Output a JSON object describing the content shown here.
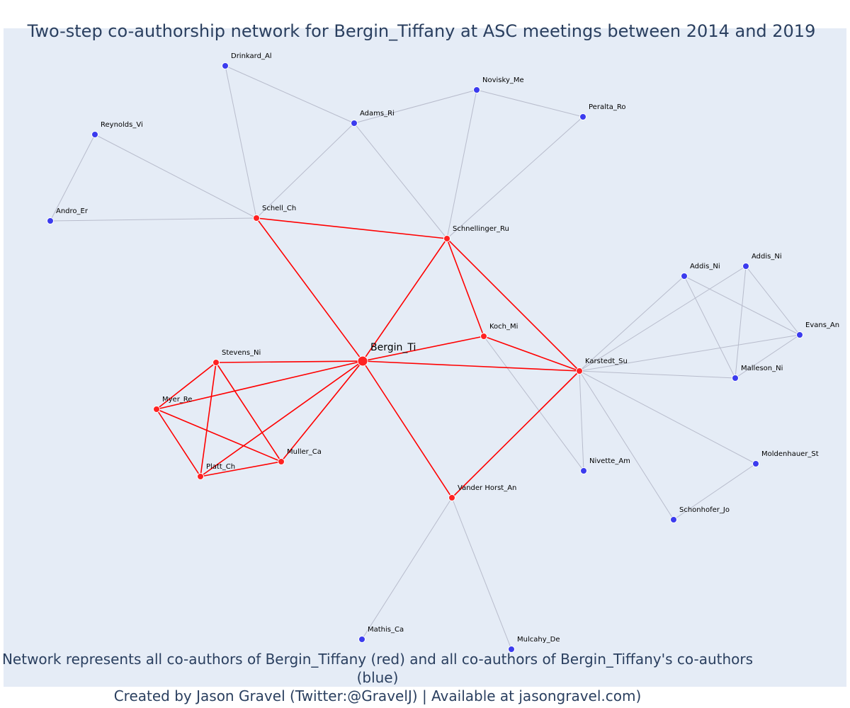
{
  "title": "Two-step co-authorship network for Bergin_Tiffany at ASC meetings between 2014 and 2019",
  "footnote": {
    "line1": "Network represents all co-authors of Bergin_Tiffany (red) and all co-authors of Bergin_Tiffany's co-authors (blue)",
    "line2": "Created by Jason Gravel (Twitter:@GravelJ) | Available at jasongravel.com)"
  },
  "colors": {
    "background": "#e5ecf6",
    "focal_edge": "#ff0000",
    "other_edge": "#b8bccc",
    "red_node": "#ff2222",
    "blue_node": "#3b3bee",
    "title_text": "#2a3f5f"
  },
  "network": {
    "focal": "Bergin_Ti",
    "nodes": [
      {
        "id": "bergin",
        "label": "Bergin_Ti",
        "group": "focal"
      },
      {
        "id": "schell",
        "label": "Schell_Ch",
        "group": "red"
      },
      {
        "id": "schnellinger",
        "label": "Schnellinger_Ru",
        "group": "red"
      },
      {
        "id": "koch",
        "label": "Koch_Mi",
        "group": "red"
      },
      {
        "id": "karstedt",
        "label": "Karstedt_Su",
        "group": "red"
      },
      {
        "id": "stevens",
        "label": "Stevens_Ni",
        "group": "red"
      },
      {
        "id": "myer",
        "label": "Myer_Re",
        "group": "red"
      },
      {
        "id": "muller",
        "label": "Muller_Ca",
        "group": "red"
      },
      {
        "id": "platt",
        "label": "Platt_Ch",
        "group": "red"
      },
      {
        "id": "vanderhorst",
        "label": "Vander Horst_An",
        "group": "red"
      },
      {
        "id": "drinkard",
        "label": "Drinkard_Al",
        "group": "blue"
      },
      {
        "id": "novisky",
        "label": "Novisky_Me",
        "group": "blue"
      },
      {
        "id": "adams",
        "label": "Adams_Ri",
        "group": "blue"
      },
      {
        "id": "peralta",
        "label": "Peralta_Ro",
        "group": "blue"
      },
      {
        "id": "reynolds",
        "label": "Reynolds_Vi",
        "group": "blue"
      },
      {
        "id": "andro",
        "label": "Andro_Er",
        "group": "blue"
      },
      {
        "id": "addis1",
        "label": "Addis_Ni",
        "group": "blue"
      },
      {
        "id": "addis2",
        "label": "Addis_Ni",
        "group": "blue"
      },
      {
        "id": "evans",
        "label": "Evans_An",
        "group": "blue"
      },
      {
        "id": "malleson",
        "label": "Malleson_Ni",
        "group": "blue"
      },
      {
        "id": "nivette",
        "label": "Nivette_Am",
        "group": "blue"
      },
      {
        "id": "moldenhauer",
        "label": "Moldenhauer_St",
        "group": "blue"
      },
      {
        "id": "schonhofer",
        "label": "Schonhofer_Jo",
        "group": "blue"
      },
      {
        "id": "mathis",
        "label": "Mathis_Ca",
        "group": "blue"
      },
      {
        "id": "mulcahy",
        "label": "Mulcahy_De",
        "group": "blue"
      }
    ],
    "edges": [
      [
        "bergin",
        "schell"
      ],
      [
        "bergin",
        "schnellinger"
      ],
      [
        "bergin",
        "koch"
      ],
      [
        "bergin",
        "karstedt"
      ],
      [
        "bergin",
        "stevens"
      ],
      [
        "bergin",
        "myer"
      ],
      [
        "bergin",
        "muller"
      ],
      [
        "bergin",
        "platt"
      ],
      [
        "bergin",
        "vanderhorst"
      ],
      [
        "schell",
        "schnellinger"
      ],
      [
        "schnellinger",
        "koch"
      ],
      [
        "schnellinger",
        "karstedt"
      ],
      [
        "koch",
        "karstedt"
      ],
      [
        "vanderhorst",
        "karstedt"
      ],
      [
        "stevens",
        "myer"
      ],
      [
        "stevens",
        "muller"
      ],
      [
        "stevens",
        "platt"
      ],
      [
        "myer",
        "muller"
      ],
      [
        "myer",
        "platt"
      ],
      [
        "muller",
        "platt"
      ],
      [
        "schell",
        "drinkard"
      ],
      [
        "schell",
        "adams"
      ],
      [
        "schell",
        "reynolds"
      ],
      [
        "schell",
        "andro"
      ],
      [
        "reynolds",
        "andro"
      ],
      [
        "adams",
        "schnellinger"
      ],
      [
        "adams",
        "novisky"
      ],
      [
        "novisky",
        "peralta"
      ],
      [
        "novisky",
        "schnellinger"
      ],
      [
        "peralta",
        "schnellinger"
      ],
      [
        "drinkard",
        "adams"
      ],
      [
        "koch",
        "nivette"
      ],
      [
        "karstedt",
        "nivette"
      ],
      [
        "karstedt",
        "addis1"
      ],
      [
        "karstedt",
        "addis2"
      ],
      [
        "karstedt",
        "evans"
      ],
      [
        "karstedt",
        "malleson"
      ],
      [
        "karstedt",
        "moldenhauer"
      ],
      [
        "karstedt",
        "schonhofer"
      ],
      [
        "moldenhauer",
        "schonhofer"
      ],
      [
        "addis1",
        "evans"
      ],
      [
        "addis1",
        "malleson"
      ],
      [
        "addis2",
        "evans"
      ],
      [
        "addis2",
        "malleson"
      ],
      [
        "evans",
        "malleson"
      ],
      [
        "vanderhorst",
        "mathis"
      ],
      [
        "vanderhorst",
        "mulcahy"
      ]
    ]
  }
}
